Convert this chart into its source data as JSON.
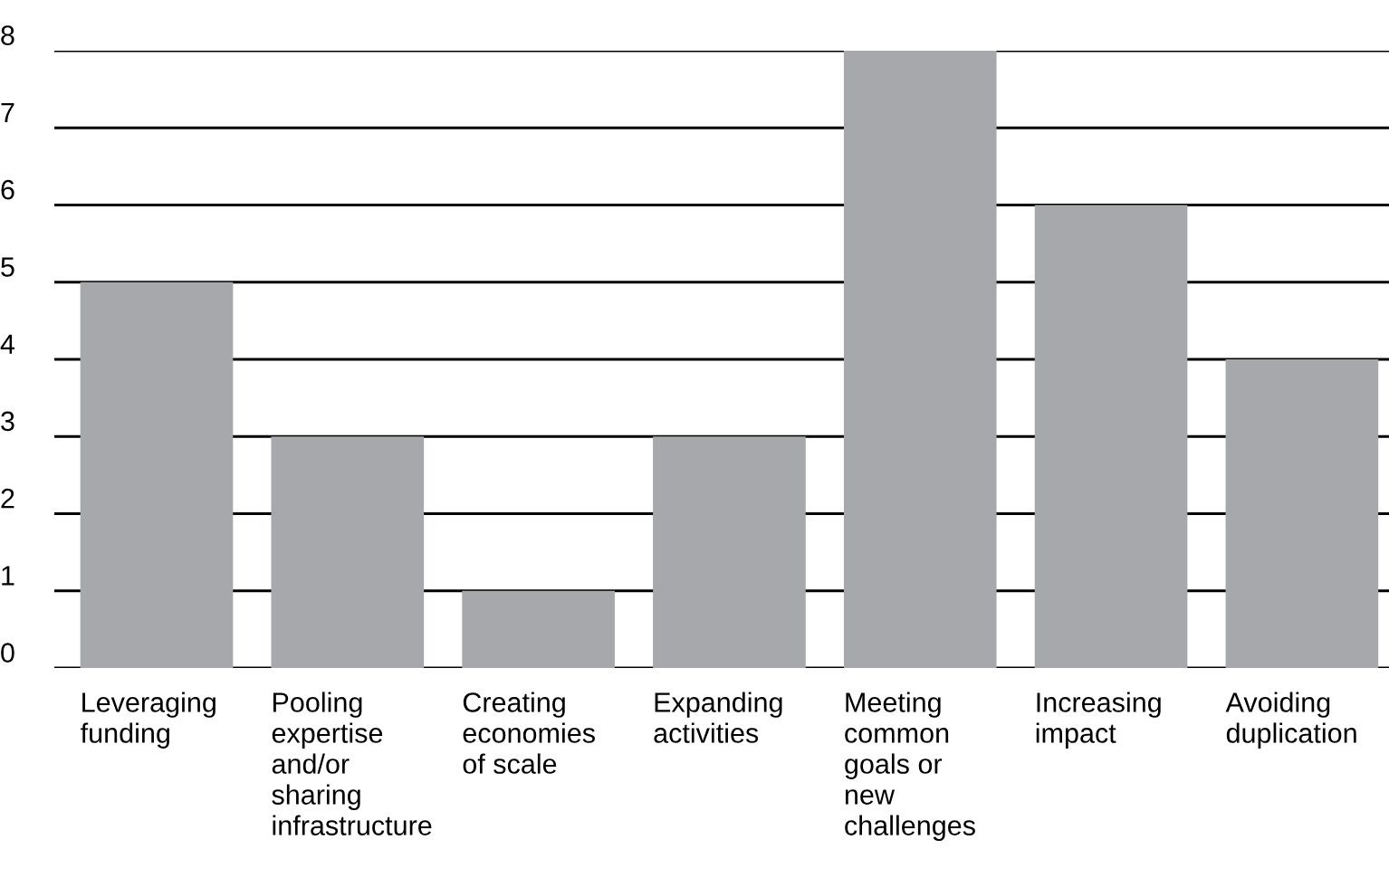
{
  "chart_data": {
    "type": "bar",
    "categories": [
      "Leveraging\nfunding",
      "Pooling\nexpertise\nand/or\nsharing\ninfrastructure",
      "Creating\neconomies\nof scale",
      "Expanding\nactivities",
      "Meeting\ncommon\ngoals or\nnew\nchallenges",
      "Increasing\nimpact",
      "Avoiding\nduplication"
    ],
    "values": [
      5,
      3,
      1,
      3,
      8,
      6,
      4
    ],
    "color": "#a7a8ab",
    "ylim": [
      0,
      8
    ],
    "yticks": [
      0,
      1,
      2,
      3,
      4,
      5,
      6,
      7,
      8
    ],
    "grid": "y"
  }
}
